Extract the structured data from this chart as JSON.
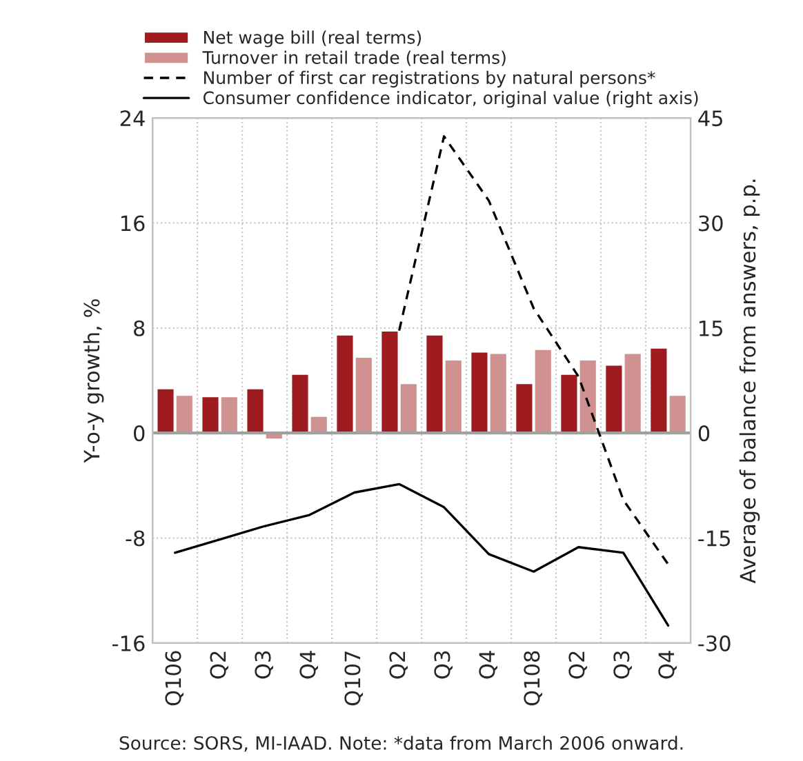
{
  "chart_data": {
    "type": "bar",
    "categories": [
      "Q106",
      "Q2",
      "Q3",
      "Q4",
      "Q107",
      "Q2",
      "Q3",
      "Q4",
      "Q108",
      "Q2",
      "Q3",
      "Q4"
    ],
    "series": [
      {
        "name": "Net wage bill (real terms)",
        "color": "#9e1b20",
        "values": [
          3.4,
          2.8,
          3.4,
          4.5,
          7.5,
          7.8,
          7.5,
          6.2,
          3.8,
          4.5,
          5.2,
          6.5
        ]
      },
      {
        "name": "Turnover in retail trade (real terms)",
        "color": "#d09290",
        "values": [
          2.9,
          2.8,
          -0.5,
          1.3,
          5.8,
          3.8,
          5.6,
          6.1,
          6.4,
          5.6,
          6.1,
          2.9
        ]
      },
      {
        "name": "Number of first car registrations by natural persons*",
        "type": "line",
        "line_style": "dashed",
        "color": "#000000",
        "values": [
          null,
          null,
          null,
          null,
          null,
          7.8,
          22.6,
          17.7,
          9.5,
          4.3,
          -5.1,
          -10.0
        ]
      },
      {
        "name": "Consumer confidence indicator, original value (right axis)",
        "type": "line",
        "line_style": "solid",
        "axis": "y2",
        "color": "#000000",
        "values": [
          -17.1,
          -15.2,
          -13.3,
          -11.7,
          -8.5,
          -7.3,
          -10.6,
          -17.3,
          -19.8,
          -16.3,
          -17.1,
          -27.5
        ]
      }
    ],
    "ylim": [
      -16,
      24
    ],
    "yticks": [
      -16,
      -8,
      0,
      8,
      16,
      24
    ],
    "y2lim": [
      -30,
      45
    ],
    "y2ticks": [
      -30,
      -15,
      0,
      15,
      30,
      45
    ],
    "ylabel": "Y-o-y growth, %",
    "y2label": "Average of balance from answers, p.p.",
    "annotations": [
      "Source: SORS, MI-IAAD. Note: *data from March 2006 onward."
    ],
    "grid": true,
    "legend": "top"
  }
}
